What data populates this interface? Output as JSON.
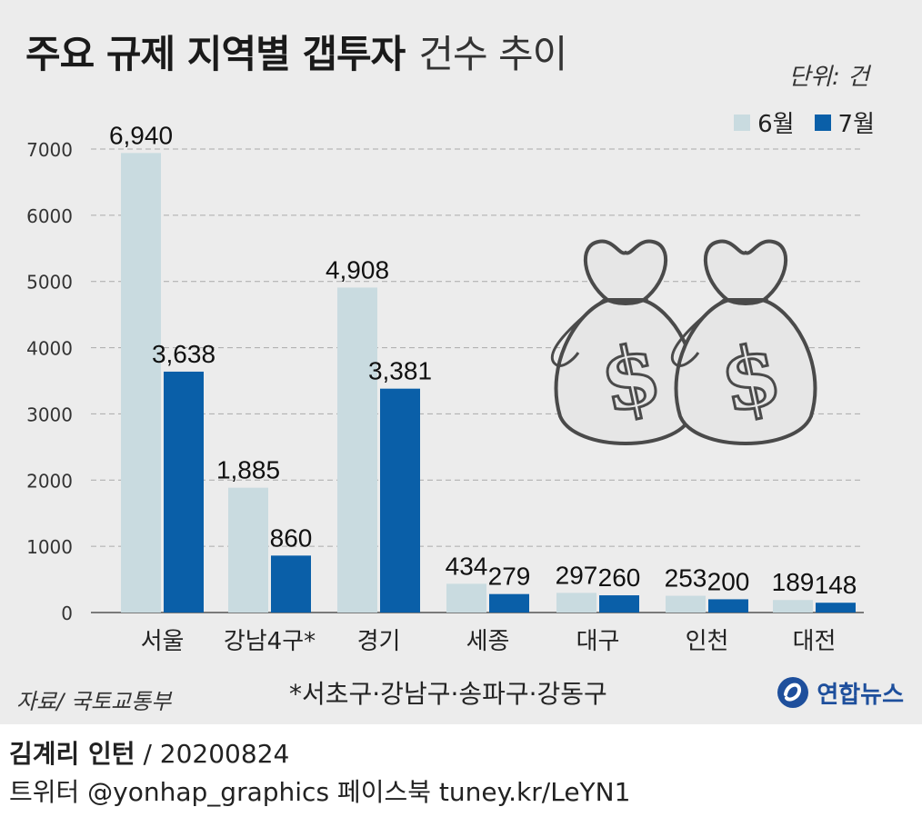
{
  "title": {
    "bold": "주요 규제 지역별 갭투자",
    "light": "건수 추이"
  },
  "unit": "단위: 건",
  "source": "자료/ 국토교통부",
  "footnote": "*서초구·강남구·송파구·강동구",
  "logo": {
    "text": "연합뉴스",
    "icon": "yonhap-logo-icon"
  },
  "credit": {
    "name": "김계리 인턴",
    "date": "/ 20200824"
  },
  "social": "트위터 @yonhap_graphics  페이스북 tuney.kr/LeYN1",
  "illustration": {
    "icon": "money-bag-dollar-icon",
    "count": 2
  },
  "colors": {
    "june": "#c9dbe0",
    "july": "#0a5fa8",
    "grid": "#aaaaaa",
    "background": "#ececec"
  },
  "chart_data": {
    "type": "bar",
    "categories": [
      "서울",
      "강남4구*",
      "경기",
      "세종",
      "대구",
      "인천",
      "대전"
    ],
    "series": [
      {
        "name": "6월",
        "values": [
          6940,
          1885,
          4908,
          434,
          297,
          253,
          189
        ],
        "labels": [
          "6,940",
          "1,885",
          "4,908",
          "434",
          "297",
          "253",
          "189"
        ]
      },
      {
        "name": "7월",
        "values": [
          3638,
          860,
          3381,
          279,
          260,
          200,
          148
        ],
        "labels": [
          "3,638",
          "860",
          "3,381",
          "279",
          "260",
          "200",
          "148"
        ]
      }
    ],
    "yticks": [
      "0",
      "1000",
      "2000",
      "3000",
      "4000",
      "5000",
      "6000",
      "7000"
    ],
    "ylim": [
      0,
      7000
    ],
    "grid": true,
    "legend_position": "top-right"
  }
}
